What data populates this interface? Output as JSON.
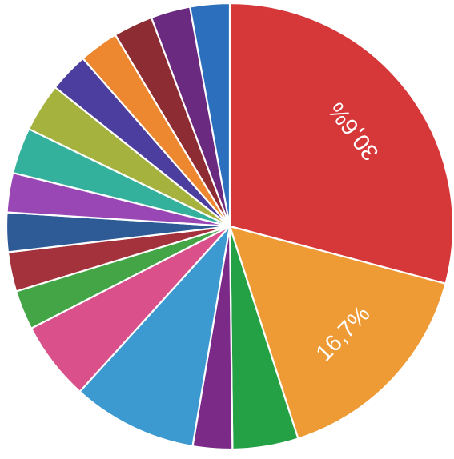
{
  "chart_data": {
    "type": "pie",
    "title": "",
    "start_angle_deg": -90,
    "direction": "clockwise",
    "label_orientation": "rotated-radial",
    "slices": [
      {
        "value": 30.6,
        "label": "30,6%",
        "color": "#d6383a"
      },
      {
        "value": 16.7,
        "label": "16,7%",
        "color": "#ee9a35"
      },
      {
        "value": 5.0,
        "label": "",
        "color": "#24a045"
      },
      {
        "value": 3.0,
        "label": "",
        "color": "#7b2a87"
      },
      {
        "value": 9.5,
        "label": "",
        "color": "#3d9ad0"
      },
      {
        "value": 6.0,
        "label": "",
        "color": "#d9508a"
      },
      {
        "value": 3.0,
        "label": "",
        "color": "#43a546"
      },
      {
        "value": 3.0,
        "label": "",
        "color": "#a4323c"
      },
      {
        "value": 3.0,
        "label": "",
        "color": "#2e5a95"
      },
      {
        "value": 3.0,
        "label": "",
        "color": "#9a47b6"
      },
      {
        "value": 3.5,
        "label": "",
        "color": "#33b19d"
      },
      {
        "value": 3.7,
        "label": "",
        "color": "#a5b33e"
      },
      {
        "value": 3.0,
        "label": "",
        "color": "#4c3e9f"
      },
      {
        "value": 3.0,
        "label": "",
        "color": "#ee8830"
      },
      {
        "value": 3.0,
        "label": "",
        "color": "#8e2c34"
      },
      {
        "value": 3.0,
        "label": "",
        "color": "#6a2a80"
      },
      {
        "value": 3.0,
        "label": "",
        "color": "#2c6fbd"
      }
    ]
  }
}
